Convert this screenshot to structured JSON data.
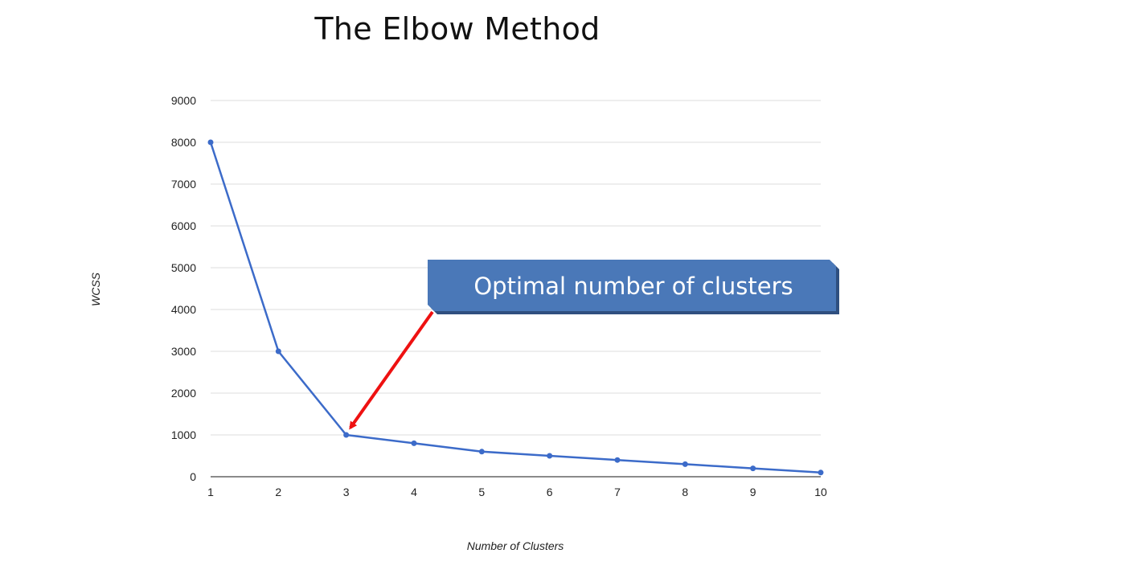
{
  "chart_data": {
    "type": "line",
    "title": "The Elbow Method",
    "xlabel": "Number of Clusters",
    "ylabel": "WCSS",
    "x": [
      1,
      2,
      3,
      4,
      5,
      6,
      7,
      8,
      9,
      10
    ],
    "y": [
      8000,
      3000,
      1000,
      800,
      600,
      500,
      400,
      300,
      200,
      100
    ],
    "xticks": [
      "1",
      "2",
      "3",
      "4",
      "5",
      "6",
      "7",
      "8",
      "9",
      "10"
    ],
    "yticks": [
      "0",
      "1000",
      "2000",
      "3000",
      "4000",
      "5000",
      "6000",
      "7000",
      "8000",
      "9000"
    ],
    "xlim": [
      1,
      10
    ],
    "ylim": [
      0,
      9000
    ],
    "grid": true,
    "line_color": "#3c6bc9",
    "annotation": {
      "text": "Optimal number of clusters",
      "points_to": {
        "x": 3,
        "y": 1000
      },
      "box_color": "#4a78b8",
      "arrow_color": "#ee1111"
    }
  }
}
